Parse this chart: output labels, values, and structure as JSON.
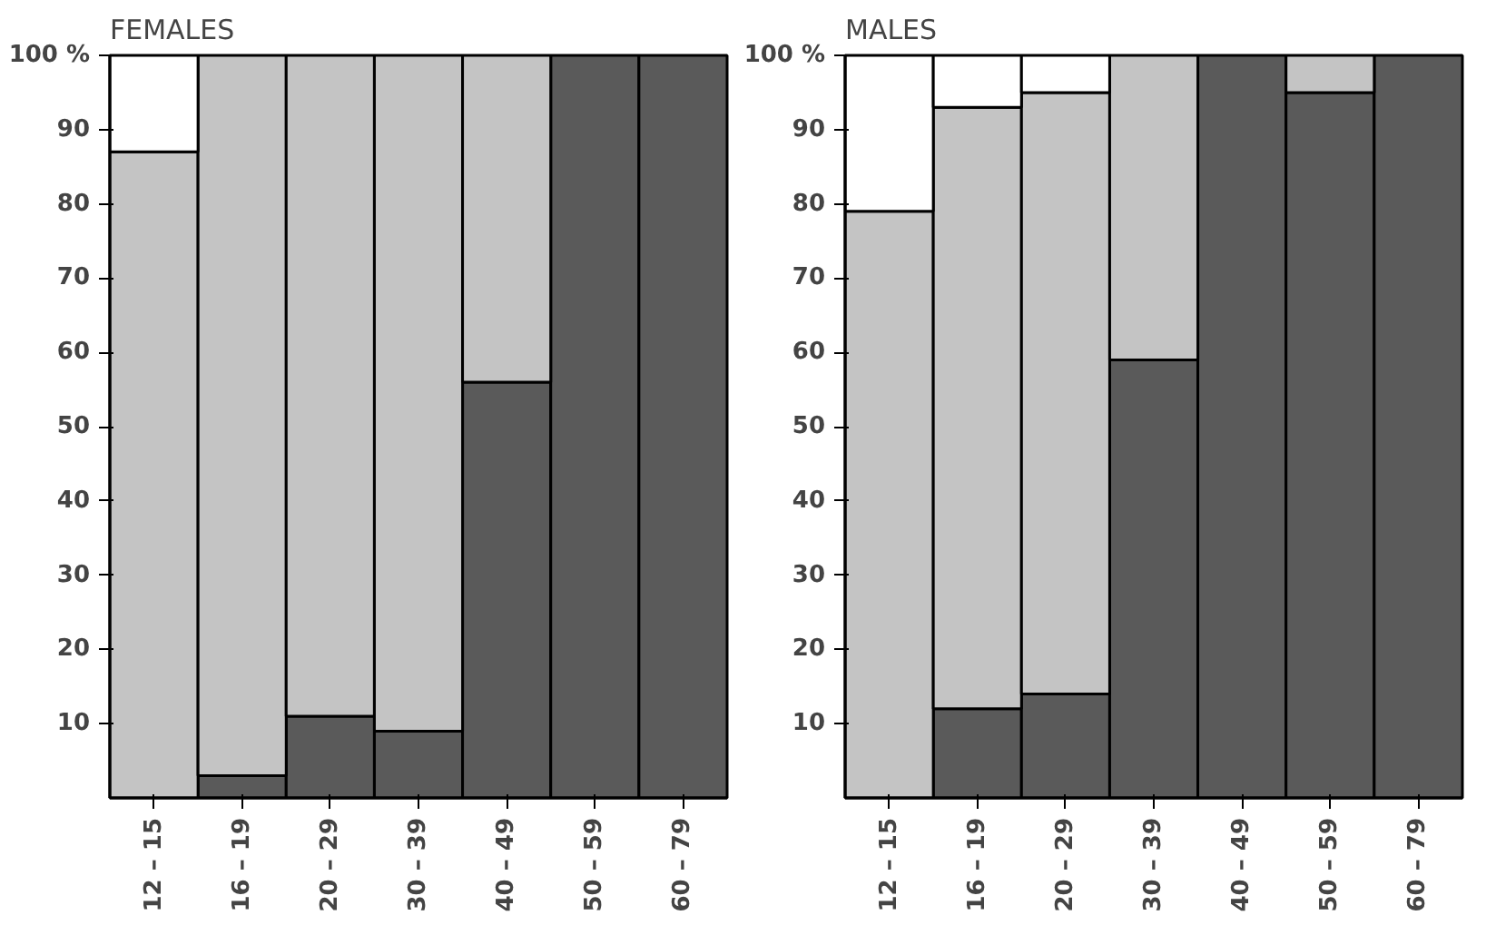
{
  "chart_data": [
    {
      "type": "bar",
      "title": "FEMALES",
      "stacked": true,
      "categories": [
        "12 – 15",
        "16 – 19",
        "20 – 29",
        "30 – 39",
        "40 – 49",
        "50 – 59",
        "60 – 79"
      ],
      "series": [
        {
          "color": "#5a5a5a",
          "values": [
            0,
            3,
            11,
            9,
            56,
            100,
            100
          ]
        },
        {
          "color": "#c4c4c4",
          "values": [
            87,
            97,
            89,
            91,
            44,
            0,
            0
          ]
        },
        {
          "color": "#ffffff",
          "values": [
            13,
            0,
            0,
            0,
            0,
            0,
            0
          ]
        }
      ],
      "ylim": [
        0,
        100
      ],
      "yticks": [
        10,
        20,
        30,
        40,
        50,
        60,
        70,
        80,
        90,
        {
          "value": 100,
          "label": "100 %"
        }
      ]
    },
    {
      "type": "bar",
      "title": "MALES",
      "stacked": true,
      "categories": [
        "12 – 15",
        "16 – 19",
        "20 – 29",
        "30 – 39",
        "40 – 49",
        "50 – 59",
        "60 – 79"
      ],
      "series": [
        {
          "color": "#5a5a5a",
          "values": [
            0,
            12,
            14,
            59,
            100,
            95,
            100
          ]
        },
        {
          "color": "#c4c4c4",
          "values": [
            79,
            81,
            81,
            41,
            0,
            5,
            0
          ]
        },
        {
          "color": "#ffffff",
          "values": [
            21,
            7,
            5,
            0,
            0,
            0,
            0
          ]
        }
      ],
      "ylim": [
        0,
        100
      ],
      "yticks": [
        10,
        20,
        30,
        40,
        50,
        60,
        70,
        80,
        90,
        {
          "value": 100,
          "label": "100 %"
        }
      ]
    }
  ]
}
